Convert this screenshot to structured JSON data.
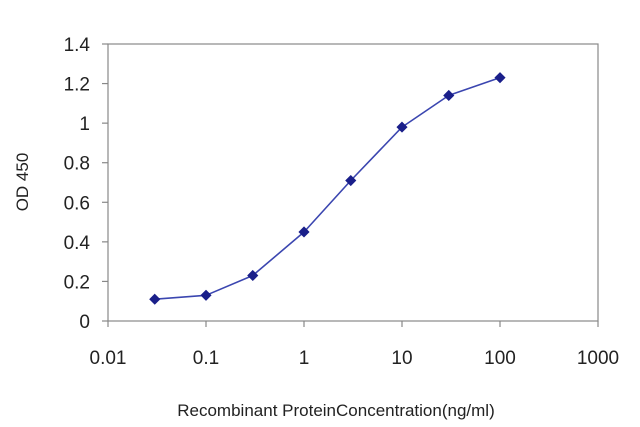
{
  "chart_data": {
    "type": "line",
    "xscale": "log",
    "xlabel": "Recombinant ProteinConcentration(ng/ml)",
    "ylabel": "OD 450",
    "xlim": [
      0.01,
      1000
    ],
    "ylim": [
      0,
      1.4
    ],
    "x_ticks": [
      0.01,
      0.1,
      1,
      10,
      100,
      1000
    ],
    "x_tick_labels": [
      "0.01",
      "0.1",
      "1",
      "10",
      "100",
      "1000"
    ],
    "y_ticks": [
      0,
      0.2,
      0.4,
      0.6,
      0.8,
      1,
      1.2,
      1.4
    ],
    "y_tick_labels": [
      "0",
      "0.2",
      "0.4",
      "0.6",
      "0.8",
      "1",
      "1.2",
      "1.4"
    ],
    "grid": false,
    "legend": "none",
    "line_color": "#3b46b0",
    "marker_color": "#1a1f8a",
    "series": [
      {
        "x": [
          0.03,
          0.1,
          0.3,
          1,
          3,
          10,
          30,
          100
        ],
        "y": [
          0.11,
          0.13,
          0.23,
          0.45,
          0.71,
          0.98,
          1.14,
          1.23
        ]
      }
    ]
  }
}
